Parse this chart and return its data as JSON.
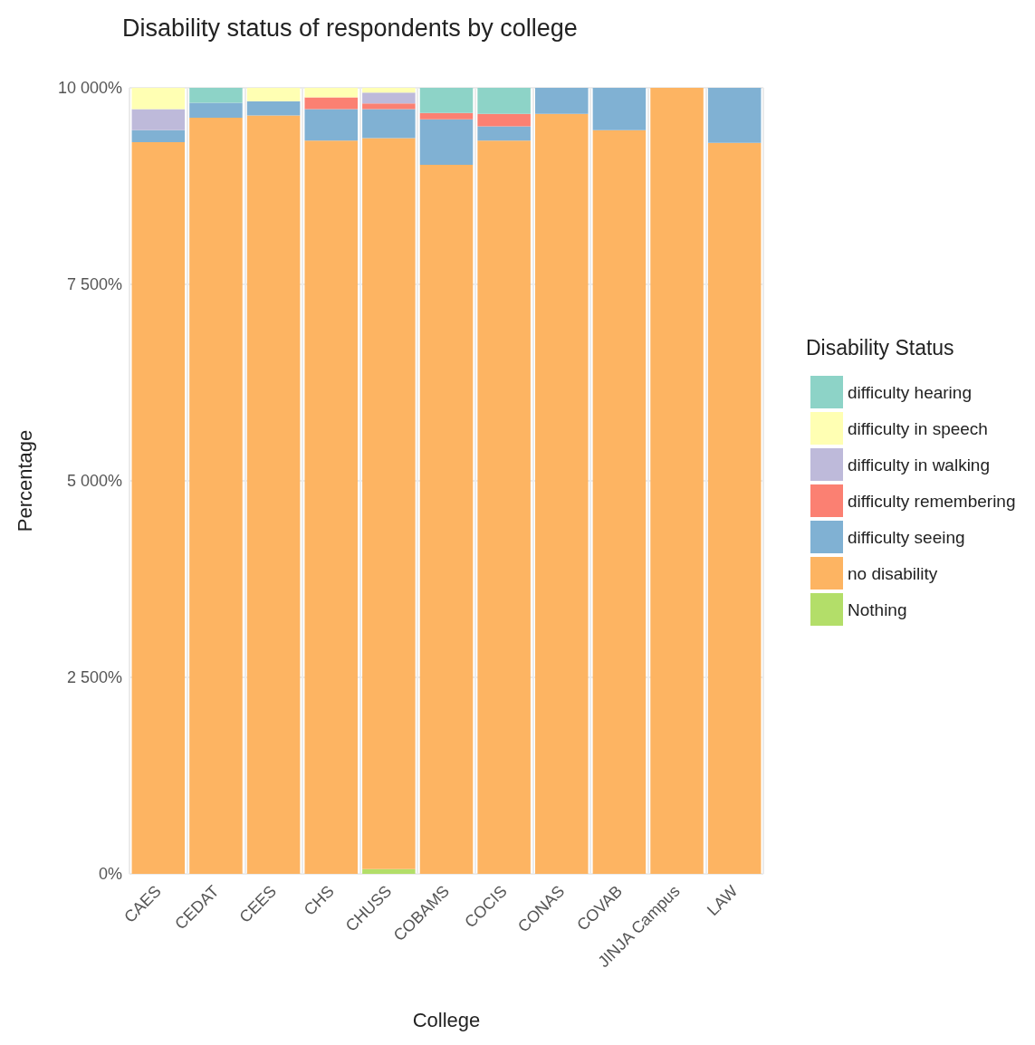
{
  "chart_data": {
    "type": "bar",
    "title": "Disability status of respondents by college",
    "xlabel": "College",
    "ylabel": "Percentage",
    "legend_title": "Disability Status",
    "categories": [
      "CAES",
      "CEDAT",
      "CEES",
      "CHS",
      "CHUSS",
      "COBAMS",
      "COCIS",
      "CONAS",
      "COVAB",
      "JINJA Campus",
      "LAW"
    ],
    "stacked": true,
    "series": [
      {
        "name": "Nothing",
        "color": "#b3de69",
        "values": [
          0,
          0,
          0,
          0,
          60,
          0,
          0,
          0,
          0,
          0,
          0
        ]
      },
      {
        "name": "no disability",
        "color": "#fdb462",
        "values": [
          9310,
          9620,
          9650,
          9330,
          9300,
          9020,
          9330,
          9670,
          9460,
          10000,
          9300
        ]
      },
      {
        "name": "difficulty seeing",
        "color": "#80b1d3",
        "values": [
          150,
          190,
          180,
          400,
          370,
          580,
          180,
          330,
          540,
          0,
          700
        ]
      },
      {
        "name": "difficulty remembering",
        "color": "#fb8072",
        "values": [
          0,
          0,
          0,
          150,
          70,
          80,
          160,
          0,
          0,
          0,
          0
        ]
      },
      {
        "name": "difficulty in walking",
        "color": "#bebada",
        "values": [
          270,
          0,
          0,
          0,
          140,
          0,
          0,
          0,
          0,
          0,
          0
        ]
      },
      {
        "name": "difficulty in speech",
        "color": "#ffffb3",
        "values": [
          270,
          0,
          170,
          120,
          60,
          0,
          0,
          0,
          0,
          0,
          0
        ]
      },
      {
        "name": "difficulty hearing",
        "color": "#8dd3c7",
        "values": [
          0,
          190,
          0,
          0,
          0,
          320,
          330,
          0,
          0,
          0,
          0
        ]
      }
    ],
    "ylim": [
      0,
      10000
    ],
    "yticks": [
      {
        "value": 0,
        "label": "0%"
      },
      {
        "value": 2500,
        "label": "2 500%"
      },
      {
        "value": 5000,
        "label": "5 000%"
      },
      {
        "value": 7500,
        "label": "7 500%"
      },
      {
        "value": 10000,
        "label": "10 000%"
      }
    ],
    "grid": true,
    "legend": "right"
  }
}
